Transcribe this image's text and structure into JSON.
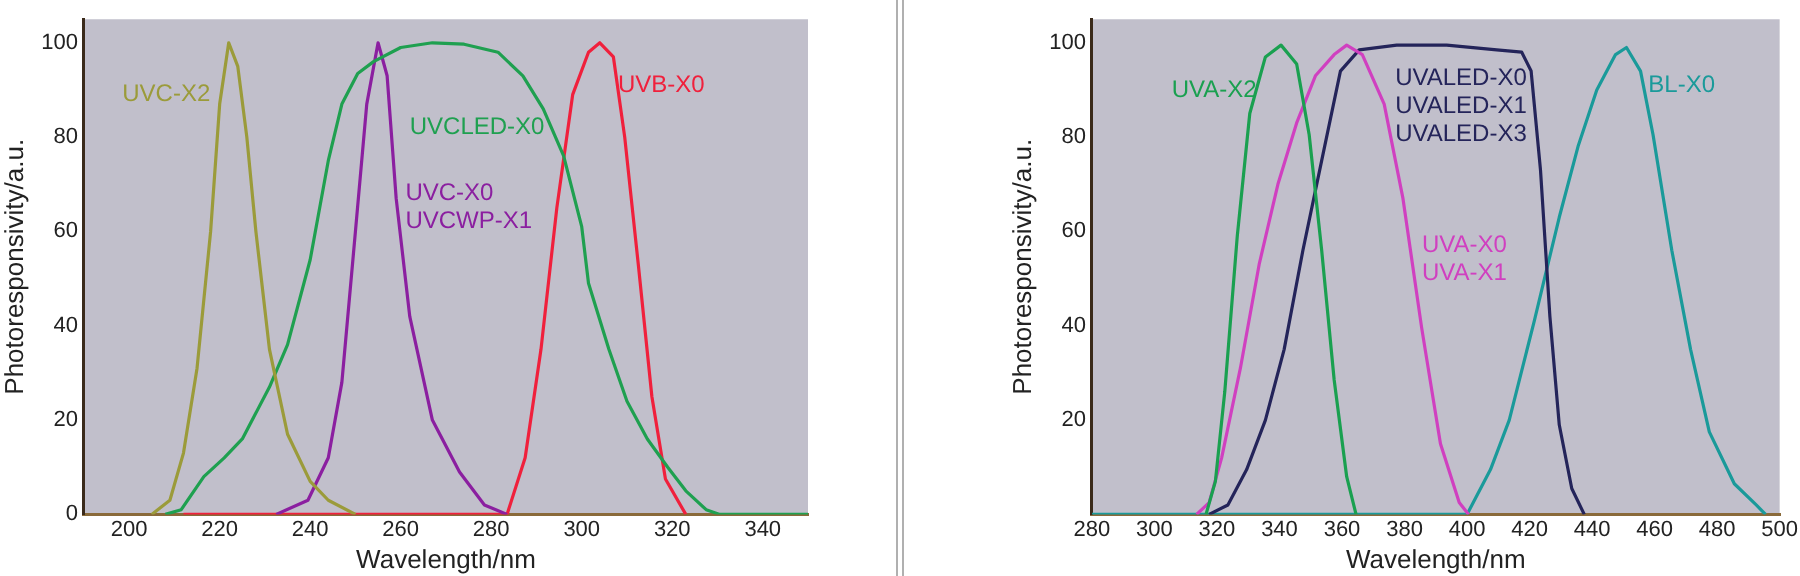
{
  "chart_data": [
    {
      "type": "line",
      "xlabel": "Wavelength/nm",
      "ylabel": "Photoresponsivity/a.u.",
      "xlim": [
        190,
        350
      ],
      "ylim": [
        0,
        105
      ],
      "xticks": [
        200,
        220,
        240,
        260,
        280,
        300,
        320,
        340
      ],
      "yticks": [
        0,
        20,
        40,
        60,
        80,
        100
      ],
      "grid": false,
      "legend": false,
      "marker": "none",
      "line_style": "solid",
      "series": [
        {
          "name": "UVC-X2",
          "color": "#9b9b3a",
          "x": [
            205,
            209,
            212,
            215,
            218,
            220,
            222,
            224,
            226,
            228,
            231,
            235,
            240,
            244,
            250
          ],
          "values": [
            0,
            3,
            13,
            31,
            60,
            87,
            100,
            95,
            80,
            60,
            35,
            17,
            7,
            3,
            0
          ]
        },
        {
          "name": "UVCLED-X0",
          "color": "#1fa050",
          "x": [
            208,
            211.5,
            216.5,
            221,
            225,
            231,
            235,
            240,
            244,
            247,
            250.5,
            254,
            260,
            267,
            274,
            281.5,
            287,
            291.5,
            296,
            300,
            301.5,
            306,
            310,
            314.5,
            319,
            323,
            327.5,
            330.5,
            350
          ],
          "values": [
            0,
            1,
            8,
            12,
            16,
            27,
            36,
            54,
            75,
            87,
            93.5,
            96,
            99,
            100,
            99.7,
            98,
            93,
            86,
            76,
            61,
            49,
            35,
            24,
            16,
            10,
            5,
            1,
            0,
            0
          ]
        },
        {
          "name": "UVC-X0\nUVCWP-X1",
          "color": "#8b1fa0",
          "x": [
            232.5,
            239.5,
            244,
            247,
            250,
            252.5,
            255,
            257,
            259,
            262,
            267,
            273,
            278.5,
            283.5
          ],
          "values": [
            0,
            3,
            12,
            28,
            60,
            87,
            100,
            93,
            67,
            42,
            20,
            9,
            2,
            0
          ]
        },
        {
          "name": "UVB-X0",
          "color": "#f0203c",
          "x": [
            212,
            283.5,
            287.5,
            291,
            294.5,
            298,
            301.5,
            304,
            307,
            309.5,
            312.5,
            315.5,
            318.5,
            323
          ],
          "values": [
            0,
            0,
            12,
            35,
            65,
            89,
            98,
            100,
            97,
            80,
            53,
            25,
            7.5,
            0
          ]
        }
      ]
    },
    {
      "type": "line",
      "xlabel": "Wavelength/nm",
      "ylabel": "Photoresponsivity/a.u.",
      "xlim": [
        280,
        500
      ],
      "ylim": [
        0,
        105
      ],
      "xticks": [
        280,
        300,
        320,
        340,
        360,
        380,
        400,
        420,
        440,
        460,
        480,
        500
      ],
      "yticks": [
        20,
        40,
        60,
        80,
        100
      ],
      "grid": false,
      "legend": false,
      "marker": "none",
      "line_style": "solid",
      "series": [
        {
          "name": "UVA-X2",
          "color": "#1aa050",
          "x": [
            316.5,
            319.5,
            322.5,
            326.5,
            330.5,
            335.5,
            340.5,
            345.5,
            349.5,
            353.5,
            357.5,
            361.5,
            364.5
          ],
          "values": [
            0,
            7,
            26,
            59,
            85,
            97,
            99.5,
            95.5,
            80.5,
            56,
            28.5,
            8,
            0
          ]
        },
        {
          "name": "UVA-X0\nUVA-X1",
          "color": "#d040c0",
          "x": [
            313.5,
            317.5,
            321.5,
            327.5,
            333.5,
            339.5,
            345.5,
            351.5,
            357.5,
            361.5,
            366.5,
            373.5,
            379.5,
            385.5,
            391.5,
            397.5,
            400.5
          ],
          "values": [
            0,
            2.5,
            12,
            31,
            53,
            70,
            83,
            93,
            97.5,
            99.5,
            97.5,
            87,
            67,
            39.5,
            15,
            2.5,
            0
          ]
        },
        {
          "name": "UVALED-X0\nUVALED-X1\nUVALED-X3",
          "color": "#24245a",
          "x": [
            317.5,
            323.5,
            329.5,
            335.5,
            341.5,
            347.5,
            353.5,
            359.5,
            365.5,
            377.5,
            393.5,
            409.5,
            417.5,
            420.5,
            423.5,
            426.5,
            429.5,
            433.5,
            437.5
          ],
          "values": [
            0,
            2,
            9.5,
            20,
            35,
            56,
            75,
            94,
            98.5,
            99.5,
            99.5,
            98.5,
            98,
            94,
            73,
            42,
            19,
            5.5,
            0
          ]
        },
        {
          "name": "BL-X0",
          "color": "#1a9a9a",
          "x": [
            280,
            400,
            407.5,
            413.5,
            421.5,
            429.5,
            435.5,
            441.5,
            447.5,
            451,
            455.5,
            459.5,
            465.5,
            471.5,
            477.5,
            485.5,
            492.5,
            495.5
          ],
          "values": [
            0,
            0,
            9.5,
            20,
            41,
            63,
            78,
            90,
            97.5,
            99,
            94,
            80.5,
            56,
            35,
            17.5,
            6.5,
            2,
            0
          ]
        }
      ]
    }
  ]
}
